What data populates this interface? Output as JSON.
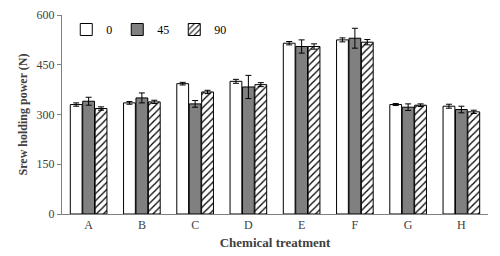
{
  "chart_data": {
    "type": "bar",
    "x_label": "Chemical treatment",
    "y_label": "Srew holding power (N)",
    "categories": [
      "A",
      "B",
      "C",
      "D",
      "E",
      "F",
      "G",
      "H"
    ],
    "series": [
      {
        "name": "0",
        "color": "#ffffff",
        "marker": "solid",
        "values": [
          330,
          335,
          393,
          400,
          515,
          525,
          330,
          325
        ],
        "errors": [
          5,
          4,
          4,
          6,
          5,
          6,
          3,
          6
        ]
      },
      {
        "name": "45",
        "color": "#808080",
        "marker": "solid",
        "values": [
          340,
          350,
          332,
          383,
          505,
          530,
          322,
          315
        ],
        "errors": [
          12,
          15,
          10,
          35,
          20,
          30,
          10,
          10
        ]
      },
      {
        "name": "90",
        "color": "#ffffff",
        "marker": "hatch",
        "values": [
          318,
          338,
          368,
          390,
          505,
          518,
          328,
          308
        ],
        "errors": [
          5,
          5,
          5,
          6,
          8,
          8,
          4,
          5
        ]
      }
    ],
    "ylim": [
      0,
      600
    ],
    "yticks": [
      0,
      150,
      300,
      450,
      600
    ],
    "grid": false,
    "legend": "top-left"
  }
}
